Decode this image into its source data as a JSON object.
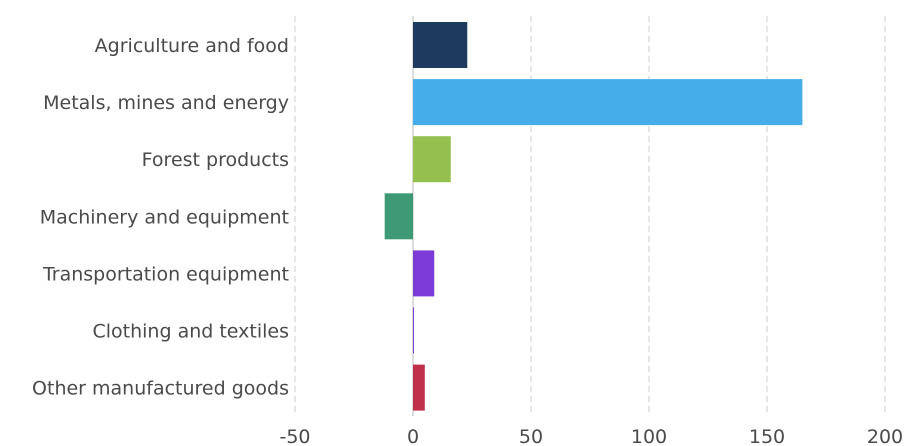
{
  "chart_data": {
    "type": "bar",
    "orientation": "horizontal",
    "categories": [
      "Agriculture and food",
      "Metals, mines and energy",
      "Forest products",
      "Machinery and equipment",
      "Transportation equipment",
      "Clothing and textiles",
      "Other manufactured goods"
    ],
    "values": [
      23,
      165,
      16,
      -12,
      9,
      0.3,
      5
    ],
    "colors": [
      "#1f3a5f",
      "#45aeea",
      "#93c04e",
      "#3e9a74",
      "#7c3bd6",
      "#7c3bd6",
      "#c0304a"
    ],
    "xlim": [
      -50,
      200
    ],
    "xticks": [
      -50,
      0,
      50,
      100,
      150,
      200
    ],
    "grid": true,
    "title": "",
    "xlabel": "",
    "ylabel": ""
  }
}
